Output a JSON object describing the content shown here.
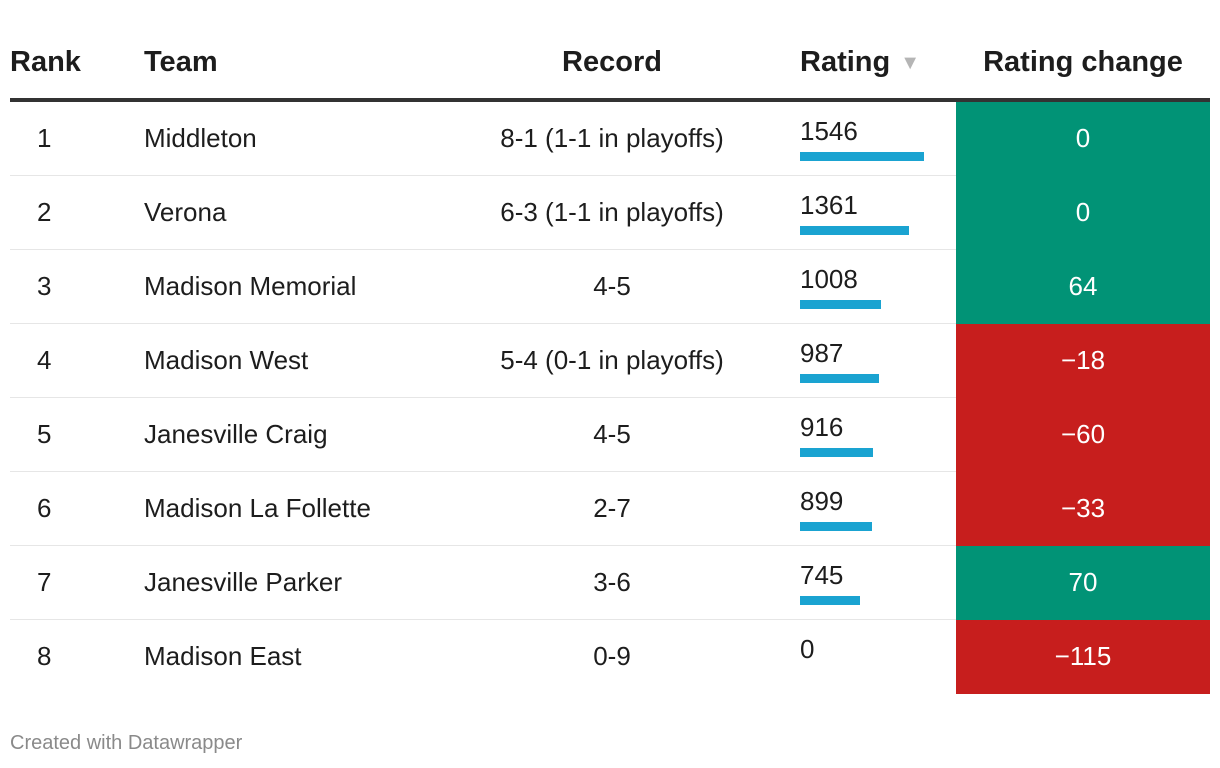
{
  "table": {
    "columns": {
      "rank": "Rank",
      "team": "Team",
      "record": "Record",
      "rating": "Rating",
      "rating_change": "Rating change",
      "sort_icon": "▼"
    },
    "rows": [
      {
        "rank": "1",
        "team": "Middleton",
        "record": "8-1 (1-1 in playoffs)",
        "rating": 1546,
        "rating_label": "1546",
        "change": 0,
        "change_label": "0"
      },
      {
        "rank": "2",
        "team": "Verona",
        "record": "6-3 (1-1 in playoffs)",
        "rating": 1361,
        "rating_label": "1361",
        "change": 0,
        "change_label": "0"
      },
      {
        "rank": "3",
        "team": "Madison Memorial",
        "record": "4-5",
        "rating": 1008,
        "rating_label": "1008",
        "change": 64,
        "change_label": "64"
      },
      {
        "rank": "4",
        "team": "Madison West",
        "record": "5-4 (0-1 in playoffs)",
        "rating": 987,
        "rating_label": "987",
        "change": -18,
        "change_label": "−18"
      },
      {
        "rank": "5",
        "team": "Janesville Craig",
        "record": "4-5",
        "rating": 916,
        "rating_label": "916",
        "change": -60,
        "change_label": "−60"
      },
      {
        "rank": "6",
        "team": "Madison La Follette",
        "record": "2-7",
        "rating": 899,
        "rating_label": "899",
        "change": -33,
        "change_label": "−33"
      },
      {
        "rank": "7",
        "team": "Janesville Parker",
        "record": "3-6",
        "rating": 745,
        "rating_label": "745",
        "change": 70,
        "change_label": "70"
      },
      {
        "rank": "8",
        "team": "Madison East",
        "record": "0-9",
        "rating": 0,
        "rating_label": "0",
        "change": -115,
        "change_label": "−115"
      }
    ]
  },
  "colors": {
    "bar": "#1aa3d1",
    "positive": "#019376",
    "negative": "#c71e1d"
  },
  "chart_data": {
    "type": "table",
    "title": "",
    "columns": [
      "Rank",
      "Team",
      "Record",
      "Rating",
      "Rating change"
    ],
    "categories": [
      "Middleton",
      "Verona",
      "Madison Memorial",
      "Madison West",
      "Janesville Craig",
      "Madison La Follette",
      "Janesville Parker",
      "Madison East"
    ],
    "series": [
      {
        "name": "Rating",
        "values": [
          1546,
          1361,
          1008,
          987,
          916,
          899,
          745,
          0
        ]
      },
      {
        "name": "Rating change",
        "values": [
          0,
          0,
          64,
          -18,
          -60,
          -33,
          70,
          -115
        ]
      }
    ],
    "sorted_by": "Rating"
  },
  "footer": {
    "credit": "Created with Datawrapper"
  }
}
